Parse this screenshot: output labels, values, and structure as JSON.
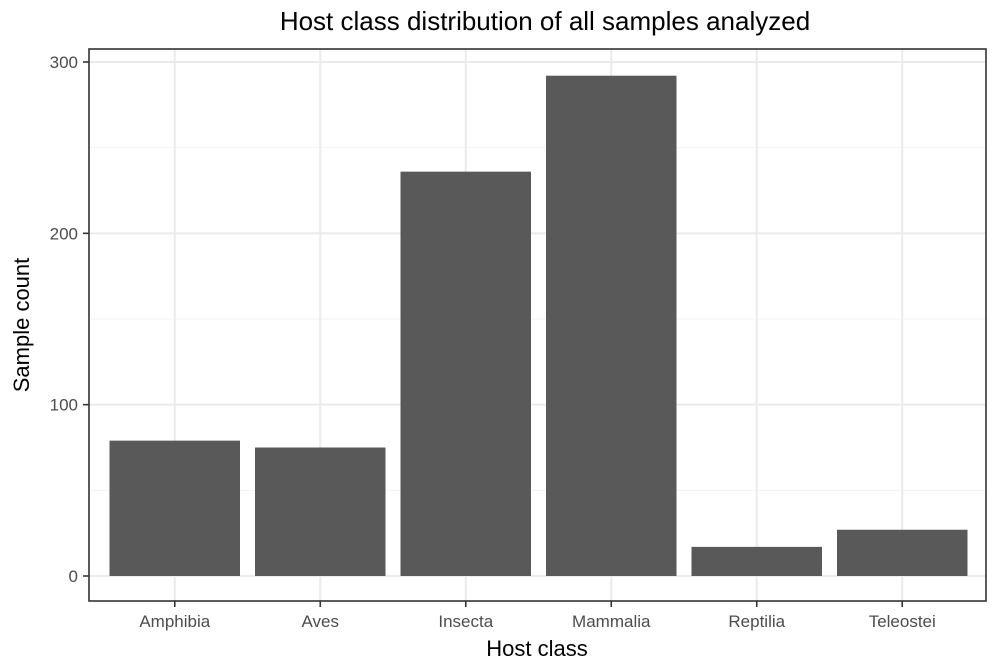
{
  "chart_data": {
    "type": "bar",
    "title": "Host class distribution of all samples analyzed",
    "xlabel": "Host class",
    "ylabel": "Sample count",
    "categories": [
      "Amphibia",
      "Aves",
      "Insecta",
      "Mammalia",
      "Reptilia",
      "Teleostei"
    ],
    "values": [
      79,
      75,
      236,
      292,
      17,
      27
    ],
    "ylim": [
      0,
      314
    ],
    "yticks": [
      0,
      100,
      200,
      300
    ],
    "grid": true,
    "bar_color": "#595959",
    "legend": "none"
  }
}
